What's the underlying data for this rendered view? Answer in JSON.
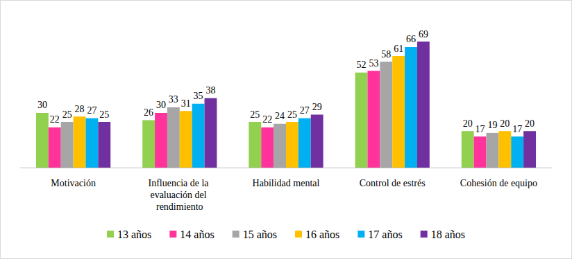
{
  "chart_data": {
    "type": "bar",
    "categories": [
      "Motivación",
      "Influencia de la evaluación del rendimiento",
      "Habilidad mental",
      "Control de estrés",
      "Cohesión de equipo"
    ],
    "series": [
      {
        "name": "13 años",
        "color": "#92d050",
        "values": [
          30,
          26,
          25,
          52,
          20
        ]
      },
      {
        "name": "14 años",
        "color": "#ff3399",
        "values": [
          22,
          30,
          22,
          53,
          17
        ]
      },
      {
        "name": "15 años",
        "color": "#a6a6a6",
        "values": [
          25,
          33,
          24,
          58,
          19
        ]
      },
      {
        "name": "16 años",
        "color": "#ffc000",
        "values": [
          28,
          31,
          25,
          61,
          20
        ]
      },
      {
        "name": "17 años",
        "color": "#00b0f0",
        "values": [
          27,
          35,
          27,
          66,
          17
        ]
      },
      {
        "name": "18 años",
        "color": "#7030a0",
        "values": [
          25,
          38,
          29,
          69,
          20
        ]
      }
    ],
    "ylim": [
      0,
      80
    ],
    "grid": false,
    "tick_labels": "x",
    "data_labels": true,
    "legend": "bottom"
  }
}
